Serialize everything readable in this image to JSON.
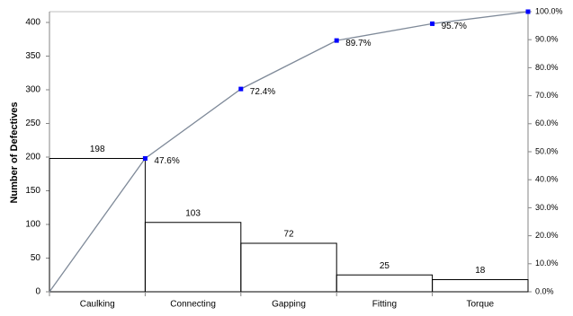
{
  "chart_data": {
    "type": "pareto",
    "ylabel": "Number of Defectives",
    "categories": [
      "Caulking",
      "Connecting",
      "Gapping",
      "Fitting",
      "Torque"
    ],
    "values": [
      198,
      103,
      72,
      25,
      18
    ],
    "color": "#000000",
    "cumulative": {
      "axis": "y2",
      "color": "#0000ff",
      "line_color": "#7f8a99",
      "values": [
        0,
        47.6,
        72.4,
        89.7,
        95.7,
        100
      ],
      "value_labels": [
        null,
        "47.6%",
        "72.4%",
        "89.7%",
        "95.7%",
        null
      ]
    },
    "ylim": [
      0,
      416
    ],
    "yticks": [
      0,
      50,
      100,
      150,
      200,
      250,
      300,
      350,
      400
    ],
    "y2lim": [
      0,
      100
    ],
    "y2ticks": [
      {
        "value": 0,
        "label": "0.0%"
      },
      {
        "value": 10,
        "label": "10.0%"
      },
      {
        "value": 20,
        "label": "20.0%"
      },
      {
        "value": 30,
        "label": "30.0%"
      },
      {
        "value": 40,
        "label": "40.0%"
      },
      {
        "value": 50,
        "label": "50.0%"
      },
      {
        "value": 60,
        "label": "60.0%"
      },
      {
        "value": 70,
        "label": "70.0%"
      },
      {
        "value": 80,
        "label": "80.0%"
      },
      {
        "value": 90,
        "label": "90.0%"
      },
      {
        "value": 100,
        "label": "100.0%"
      }
    ]
  }
}
